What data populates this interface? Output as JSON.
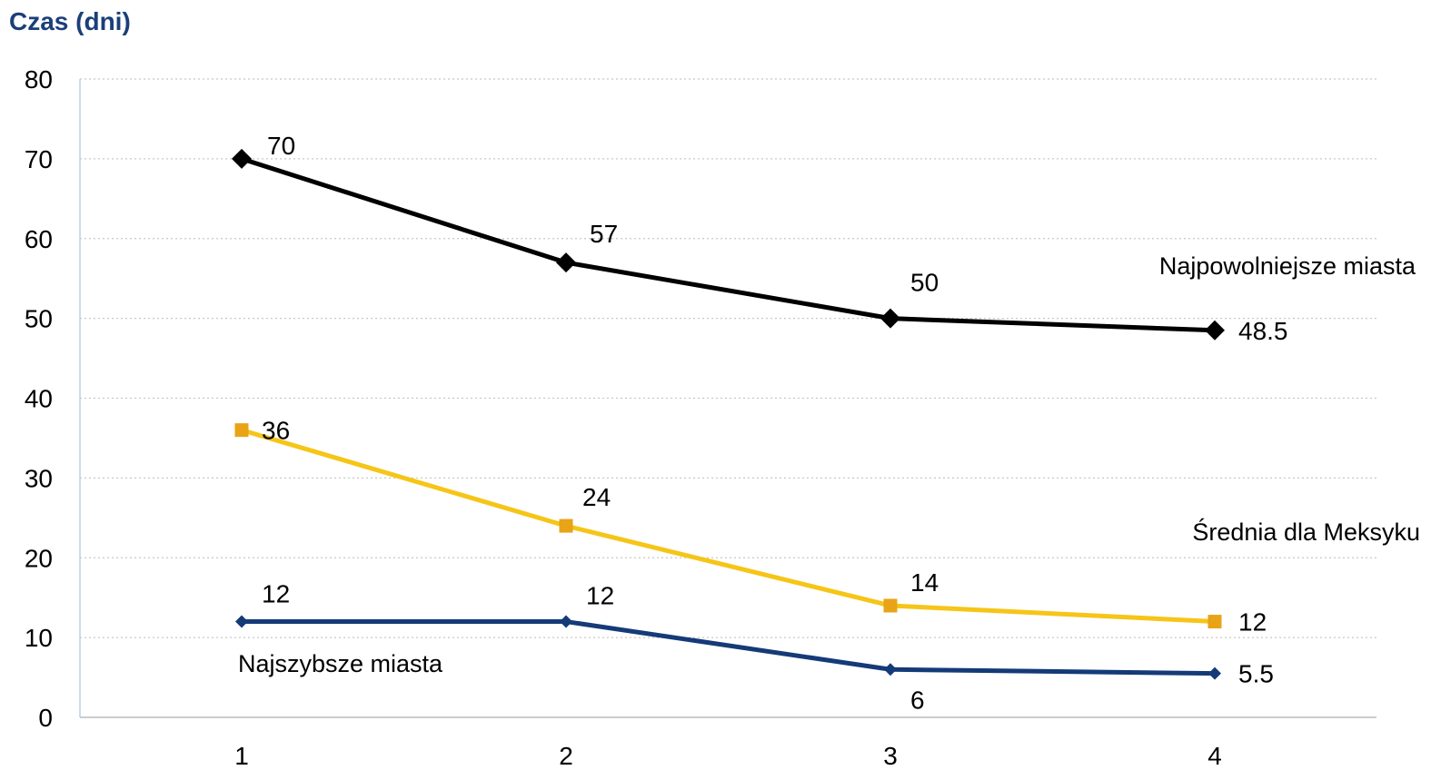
{
  "chart_data": {
    "type": "line",
    "ylabel": "Czas (dni)",
    "categories": [
      "1",
      "2",
      "3",
      "4"
    ],
    "ylim": [
      0,
      80
    ],
    "yticks": [
      "0",
      "10",
      "20",
      "30",
      "40",
      "50",
      "60",
      "70",
      "80"
    ],
    "grid": true,
    "series": [
      {
        "name": "Najpowolniejsze miasta",
        "values": [
          70,
          57,
          50,
          48.5
        ],
        "labels": [
          "70",
          "57",
          "50",
          "48.5"
        ],
        "color": "#000000",
        "marker": "diamond"
      },
      {
        "name": "Średnia dla Meksyku",
        "values": [
          36,
          24,
          14,
          12
        ],
        "labels": [
          "36",
          "24",
          "14",
          "12"
        ],
        "color": "#f5c518",
        "marker_color": "#e8a317",
        "marker": "square"
      },
      {
        "name": "Najszybsze miasta",
        "values": [
          12,
          12,
          6,
          5.5
        ],
        "labels": [
          "12",
          "12",
          "6",
          "5.5"
        ],
        "color": "#143a78",
        "marker": "diamond"
      }
    ]
  }
}
